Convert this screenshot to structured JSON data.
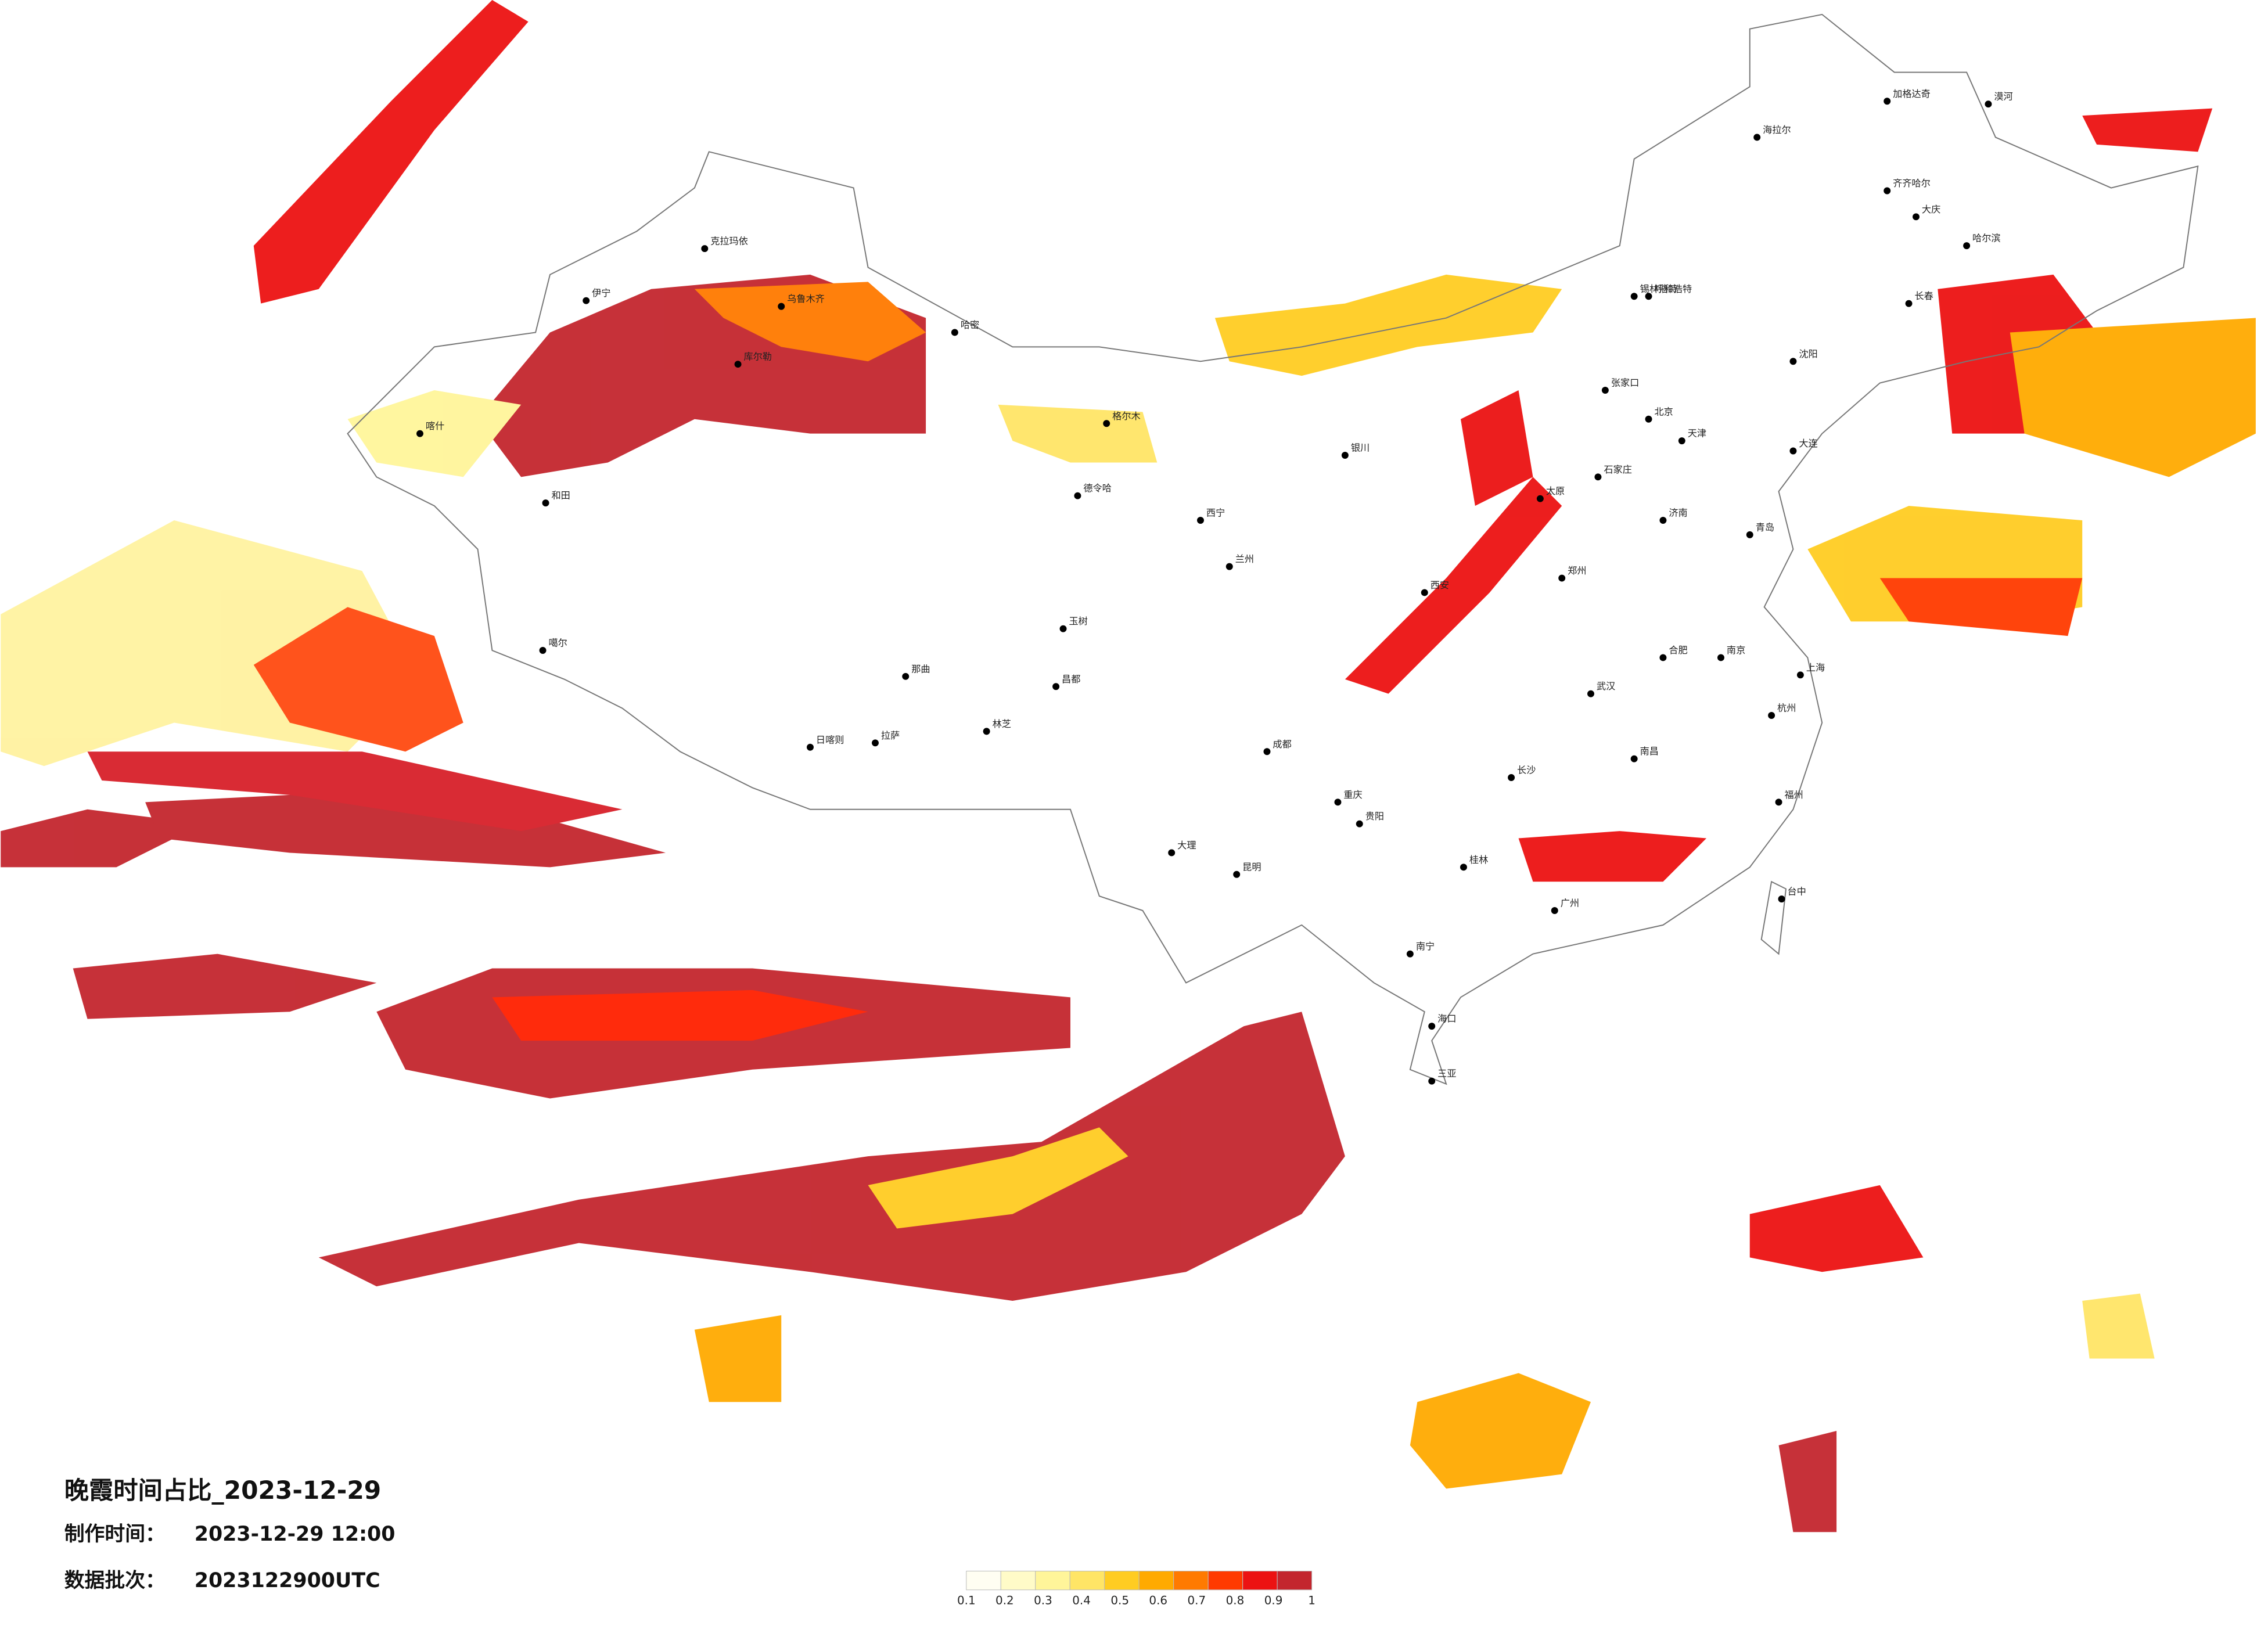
{
  "header": {
    "title": "晚霞时间占比_2023-12-29",
    "made_label": "制作时间：",
    "made_time": "2023-12-29 12:00",
    "batch_label": "数据批次：",
    "batch": "2023122900UTC"
  },
  "legend": {
    "ticks": [
      0.1,
      0.2,
      0.3,
      0.4,
      0.5,
      0.6,
      0.7,
      0.8,
      0.9,
      1
    ],
    "colors": [
      "#fffef2",
      "#fffbc8",
      "#fff59a",
      "#ffe566",
      "#ffcc22",
      "#ffaa00",
      "#ff7a00",
      "#ff3a00",
      "#ec1212",
      "#c3262e"
    ]
  },
  "cities": [
    "克拉玛依",
    "伊宁",
    "喀什",
    "和田",
    "库尔勒",
    "乌鲁木齐",
    "哈密",
    "格尔木",
    "德令哈",
    "噶尔",
    "日喀则",
    "拉萨",
    "那曲",
    "林芝",
    "昌都",
    "玉树",
    "西宁",
    "兰州",
    "成都",
    "重庆",
    "昆明",
    "贵阳",
    "南宁",
    "海口",
    "三亚",
    "广州",
    "长沙",
    "武汉",
    "南京",
    "上海",
    "杭州",
    "福州",
    "台中",
    "北京",
    "天津",
    "呼和浩特",
    "石家庄",
    "太原",
    "郑州",
    "西安",
    "济南",
    "青岛",
    "大连",
    "沈阳",
    "长春",
    "哈尔滨",
    "齐齐哈尔",
    "大庆",
    "海拉尔",
    "加格达奇",
    "漠河",
    "锡林浩特",
    "张家口",
    "银川",
    "大理",
    "桂林",
    "南昌",
    "合肥"
  ]
}
